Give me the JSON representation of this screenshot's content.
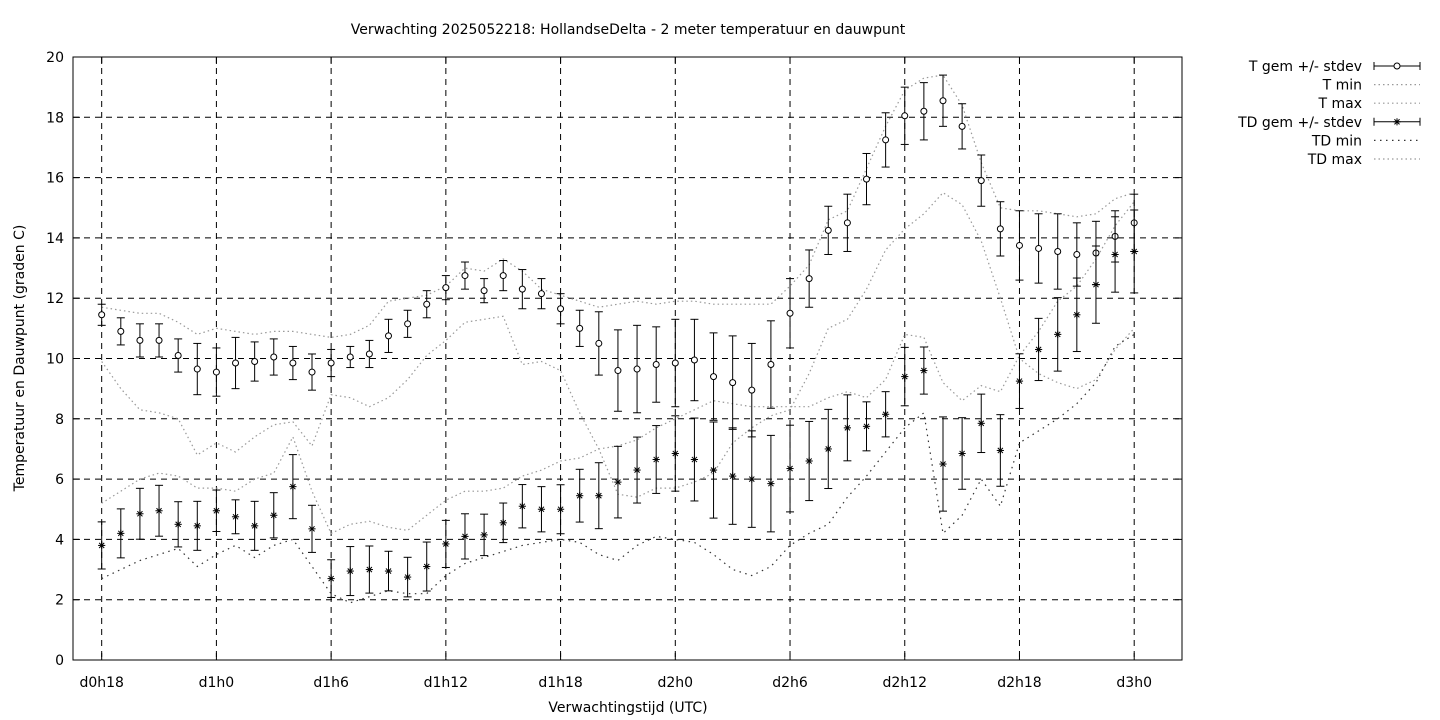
{
  "chart_data": {
    "type": "line",
    "title": "Verwachting 2025052218: HollandseDelta - 2 meter temperatuur en dauwpunt",
    "xlabel": "Verwachtingstijd (UTC)",
    "ylabel": "Temperatuur en Dauwpunt (graden C)",
    "ylim": [
      0,
      20
    ],
    "yticks": [
      0,
      2,
      4,
      6,
      8,
      10,
      12,
      14,
      16,
      18,
      20
    ],
    "xlim": [
      16.5,
      74.5
    ],
    "xticks": [
      {
        "value": 18,
        "label": "d0h18"
      },
      {
        "value": 24,
        "label": "d1h0"
      },
      {
        "value": 30,
        "label": "d1h6"
      },
      {
        "value": 36,
        "label": "d1h12"
      },
      {
        "value": 42,
        "label": "d1h18"
      },
      {
        "value": 48,
        "label": "d2h0"
      },
      {
        "value": 54,
        "label": "d2h6"
      },
      {
        "value": 60,
        "label": "d2h12"
      },
      {
        "value": 66,
        "label": "d2h18"
      },
      {
        "value": 72,
        "label": "d3h0"
      }
    ],
    "grid": true,
    "legend_position": "outside-top-right",
    "x": [
      18,
      19,
      20,
      21,
      22,
      23,
      24,
      25,
      26,
      27,
      28,
      29,
      30,
      31,
      32,
      33,
      34,
      35,
      36,
      37,
      38,
      39,
      40,
      41,
      42,
      43,
      44,
      45,
      46,
      47,
      48,
      49,
      50,
      51,
      52,
      53,
      54,
      55,
      56,
      57,
      58,
      59,
      60,
      61,
      62,
      63,
      64,
      65,
      66,
      67,
      68,
      69,
      70,
      71,
      72
    ],
    "series": [
      {
        "name": "T gem +/- stdev",
        "marker": "circle",
        "values": [
          11.45,
          10.9,
          10.6,
          10.6,
          10.1,
          9.65,
          9.55,
          9.85,
          9.9,
          10.05,
          9.85,
          9.55,
          9.85,
          10.05,
          10.15,
          10.75,
          11.15,
          11.8,
          12.35,
          12.75,
          12.25,
          12.75,
          12.3,
          12.15,
          11.65,
          11.0,
          10.5,
          9.6,
          9.65,
          9.8,
          9.85,
          9.95,
          9.4,
          9.2,
          8.95,
          9.8,
          11.5,
          12.65,
          14.25,
          14.5,
          15.95,
          17.25,
          18.05,
          18.2,
          18.55,
          17.7,
          15.9,
          14.3,
          13.75,
          13.65,
          13.55,
          13.45,
          13.5,
          14.05,
          14.5
        ],
        "stdev": [
          0.35,
          0.45,
          0.55,
          0.55,
          0.55,
          0.85,
          0.8,
          0.85,
          0.65,
          0.6,
          0.55,
          0.6,
          0.45,
          0.35,
          0.45,
          0.55,
          0.45,
          0.45,
          0.4,
          0.45,
          0.4,
          0.5,
          0.65,
          0.5,
          0.5,
          0.6,
          1.05,
          1.35,
          1.45,
          1.25,
          1.45,
          1.35,
          1.45,
          1.55,
          1.55,
          1.45,
          1.15,
          0.95,
          0.8,
          0.95,
          0.85,
          0.9,
          0.95,
          0.95,
          0.85,
          0.75,
          0.85,
          0.9,
          1.15,
          1.15,
          1.25,
          1.05,
          1.05,
          0.85,
          0.95
        ]
      },
      {
        "name": "T min",
        "values": [
          9.9,
          9.0,
          8.3,
          8.2,
          8.0,
          6.8,
          7.2,
          6.9,
          7.4,
          7.8,
          7.9,
          7.1,
          8.8,
          8.7,
          8.4,
          8.7,
          9.3,
          10.1,
          10.6,
          11.2,
          11.3,
          11.4,
          9.8,
          9.9,
          9.6,
          8.2,
          7.0,
          5.5,
          5.4,
          5.7,
          5.7,
          5.9,
          6.2,
          7.2,
          7.7,
          8.1,
          8.3,
          9.5,
          11.0,
          11.3,
          12.3,
          13.6,
          14.3,
          14.8,
          15.5,
          15.1,
          13.9,
          12.0,
          10.0,
          9.5,
          9.2,
          9.0,
          9.3,
          10.3,
          11.0
        ]
      },
      {
        "name": "T max",
        "values": [
          11.7,
          11.6,
          11.5,
          11.5,
          11.2,
          10.8,
          11.0,
          10.9,
          10.8,
          10.9,
          10.9,
          10.8,
          10.7,
          10.8,
          11.1,
          11.9,
          12.0,
          12.1,
          12.4,
          13.0,
          12.9,
          13.3,
          12.9,
          12.3,
          12.1,
          11.9,
          11.7,
          11.8,
          11.9,
          11.8,
          11.9,
          11.9,
          11.8,
          11.8,
          11.8,
          11.8,
          12.4,
          13.1,
          14.6,
          14.9,
          16.3,
          17.7,
          18.9,
          19.3,
          19.4,
          18.4,
          16.5,
          15.0,
          14.9,
          14.9,
          14.8,
          14.7,
          14.8,
          15.3,
          15.5
        ]
      },
      {
        "name": "TD gem +/- stdev",
        "marker": "star",
        "values": [
          3.8,
          4.2,
          4.85,
          4.95,
          4.5,
          4.45,
          4.95,
          4.75,
          4.45,
          4.8,
          5.75,
          4.35,
          2.7,
          2.95,
          3.0,
          2.95,
          2.75,
          3.1,
          3.85,
          4.1,
          4.15,
          4.55,
          5.1,
          5.0,
          5.0,
          5.45,
          5.45,
          5.9,
          6.3,
          6.65,
          6.85,
          6.65,
          6.3,
          6.1,
          6.0,
          5.85,
          6.35,
          6.6,
          7.0,
          7.7,
          7.75,
          8.15,
          9.4,
          9.6,
          6.5,
          6.85,
          7.85,
          6.95,
          9.25,
          10.3,
          10.8,
          11.45,
          12.45,
          13.45,
          13.55
        ]
      },
      {
        "name": "TD min",
        "values": [
          2.7,
          3.0,
          3.3,
          3.5,
          3.7,
          3.1,
          3.5,
          3.8,
          3.4,
          3.8,
          4.0,
          3.1,
          2.2,
          1.9,
          2.1,
          2.3,
          2.2,
          2.2,
          2.8,
          3.2,
          3.4,
          3.6,
          3.8,
          3.9,
          4.0,
          3.9,
          3.5,
          3.3,
          3.8,
          4.1,
          4.0,
          3.9,
          3.5,
          3.0,
          2.8,
          3.1,
          3.8,
          4.2,
          4.5,
          5.4,
          6.1,
          6.9,
          7.7,
          8.2,
          4.2,
          4.8,
          6.0,
          5.1,
          7.2,
          7.6,
          8.0,
          8.5,
          9.2,
          10.4,
          10.8
        ]
      },
      {
        "name": "TD max",
        "values": [
          5.2,
          5.6,
          6.0,
          6.2,
          6.1,
          5.7,
          5.7,
          5.6,
          6.0,
          6.2,
          7.4,
          5.6,
          4.2,
          4.5,
          4.6,
          4.4,
          4.3,
          4.8,
          5.3,
          5.6,
          5.6,
          5.7,
          6.1,
          6.3,
          6.6,
          6.7,
          7.0,
          7.1,
          7.3,
          7.7,
          8.0,
          8.3,
          8.6,
          8.5,
          8.4,
          8.4,
          8.4,
          8.4,
          8.7,
          8.9,
          8.7,
          9.3,
          10.8,
          10.7,
          9.2,
          8.6,
          9.1,
          8.9,
          10.1,
          10.9,
          11.9,
          12.4,
          13.3,
          14.4,
          15.2
        ]
      }
    ]
  }
}
